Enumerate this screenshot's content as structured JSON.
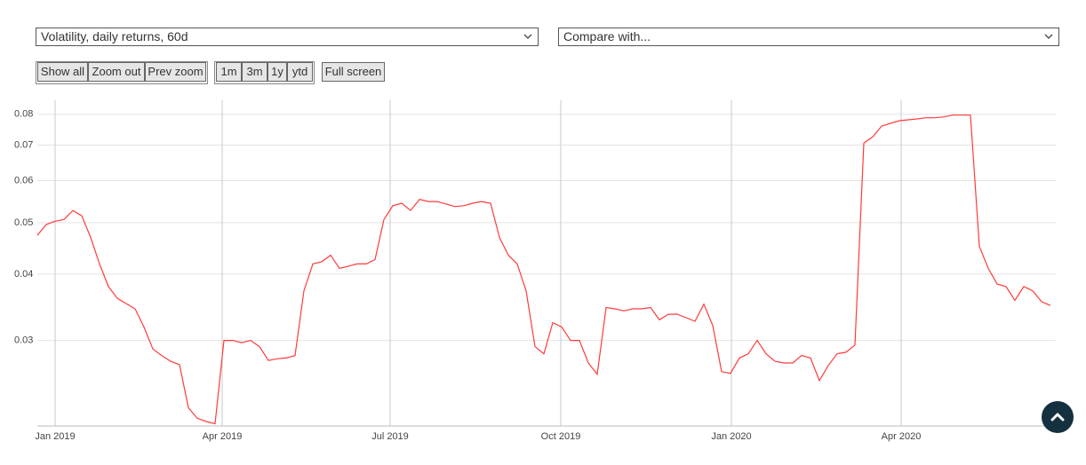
{
  "controls": {
    "series_select": "Volatility, daily returns, 60d",
    "compare_select": "Compare with...",
    "zoom_buttons": [
      "Show all",
      "Zoom out",
      "Prev zoom"
    ],
    "range_buttons": [
      "1m",
      "3m",
      "1y",
      "ytd"
    ],
    "fullscreen_button": "Full screen"
  },
  "chart_data": {
    "type": "line",
    "log_scale": true,
    "grid": true,
    "series": [
      {
        "name": "Volatility, daily returns, 60d",
        "color": "#ff3b3b",
        "values": [
          0.0473,
          0.0496,
          0.0503,
          0.0507,
          0.0527,
          0.0515,
          0.0469,
          0.0418,
          0.0379,
          0.036,
          0.0352,
          0.0344,
          0.0318,
          0.0289,
          0.0281,
          0.0274,
          0.027,
          0.0224,
          0.0214,
          0.0211,
          0.0209,
          0.03,
          0.03,
          0.0297,
          0.03,
          0.0292,
          0.0275,
          0.0277,
          0.0278,
          0.0281,
          0.0372,
          0.0418,
          0.0422,
          0.0434,
          0.041,
          0.0414,
          0.0418,
          0.0418,
          0.0426,
          0.0507,
          0.0538,
          0.0544,
          0.0527,
          0.0553,
          0.0548,
          0.0548,
          0.0542,
          0.0536,
          0.0538,
          0.0544,
          0.0548,
          0.0544,
          0.0469,
          0.0434,
          0.0418,
          0.0372,
          0.0292,
          0.0283,
          0.0324,
          0.0318,
          0.03,
          0.03,
          0.0272,
          0.0259,
          0.0346,
          0.0344,
          0.0341,
          0.0344,
          0.0344,
          0.0346,
          0.0328,
          0.0336,
          0.0336,
          0.0331,
          0.0326,
          0.0351,
          0.032,
          0.0262,
          0.026,
          0.0278,
          0.0283,
          0.03,
          0.0283,
          0.0274,
          0.0272,
          0.0272,
          0.0281,
          0.0278,
          0.0252,
          0.0269,
          0.0283,
          0.0285,
          0.0294,
          0.0706,
          0.0725,
          0.076,
          0.0769,
          0.0778,
          0.0781,
          0.0784,
          0.0788,
          0.0788,
          0.0791,
          0.0797,
          0.0797,
          0.0797,
          0.0451,
          0.041,
          0.0383,
          0.0379,
          0.0357,
          0.0379,
          0.0372,
          0.0355,
          0.0349
        ]
      }
    ],
    "xlim": [
      0,
      114
    ],
    "xticks": [
      {
        "value": 2,
        "label": "Jan 2019"
      },
      {
        "value": 20.8,
        "label": "Apr 2019"
      },
      {
        "value": 39.7,
        "label": "Jul 2019"
      },
      {
        "value": 58.9,
        "label": "Oct 2019"
      },
      {
        "value": 78.1,
        "label": "Jan 2020"
      },
      {
        "value": 97.2,
        "label": "Apr 2020"
      }
    ],
    "ylim": [
      0.0207,
      0.085
    ],
    "yticks": [
      0.03,
      0.04,
      0.05,
      0.06,
      0.07,
      0.08
    ]
  }
}
